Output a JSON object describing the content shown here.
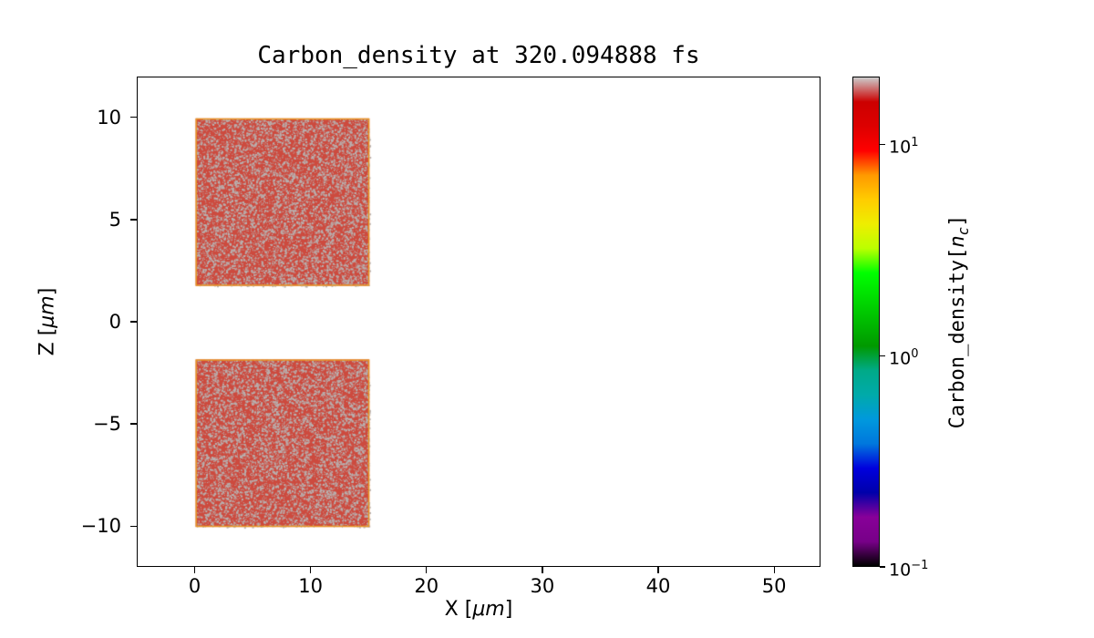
{
  "chart_data": {
    "type": "heatmap",
    "title": "Carbon_density at 320.094888 fs",
    "xlabel": {
      "pre": "X [",
      "math": "μm",
      "post": "]"
    },
    "ylabel": {
      "pre": "Z [",
      "math": "μm",
      "post": "]"
    },
    "x_range": [
      -5,
      54
    ],
    "z_range": [
      -12,
      12
    ],
    "x_ticks": [
      0,
      10,
      20,
      30,
      40,
      50
    ],
    "z_ticks": [
      10,
      5,
      0,
      -5,
      -10
    ],
    "grid": false,
    "blocks": [
      {
        "x0": 0,
        "x1": 15,
        "z0": 1.8,
        "z1": 10
      },
      {
        "x0": 0,
        "x1": 15,
        "z0": -10,
        "z1": -1.8
      }
    ],
    "block_fill": "#cd4a3e",
    "block_speckle": "#b8b1b0",
    "block_edge": "#e89820",
    "colorbar": {
      "label": {
        "pre": "Carbon_density[",
        "math": "n",
        "sub": "c",
        "post": "]"
      },
      "scale": "log",
      "min_exp": -1,
      "max_exp": 1.32,
      "ticks": [
        {
          "mantissa": "10",
          "exp_label": "1",
          "exp": 1
        },
        {
          "mantissa": "10",
          "exp_label": "0",
          "exp": 0
        },
        {
          "mantissa": "10",
          "exp_label": "−1",
          "exp": -1
        }
      ],
      "stops": [
        {
          "t": 0.0,
          "c": "#000000"
        },
        {
          "t": 0.05,
          "c": "#770088"
        },
        {
          "t": 0.1,
          "c": "#880099"
        },
        {
          "t": 0.15,
          "c": "#0000aa"
        },
        {
          "t": 0.2,
          "c": "#0000dd"
        },
        {
          "t": 0.25,
          "c": "#0077dd"
        },
        {
          "t": 0.3,
          "c": "#0099dd"
        },
        {
          "t": 0.35,
          "c": "#00aaaa"
        },
        {
          "t": 0.4,
          "c": "#00aa88"
        },
        {
          "t": 0.45,
          "c": "#009900"
        },
        {
          "t": 0.5,
          "c": "#00bb00"
        },
        {
          "t": 0.55,
          "c": "#00dd00"
        },
        {
          "t": 0.6,
          "c": "#00ff00"
        },
        {
          "t": 0.65,
          "c": "#bbff00"
        },
        {
          "t": 0.7,
          "c": "#eeee00"
        },
        {
          "t": 0.75,
          "c": "#ffcc00"
        },
        {
          "t": 0.8,
          "c": "#ff9900"
        },
        {
          "t": 0.85,
          "c": "#ff0000"
        },
        {
          "t": 0.9,
          "c": "#dd0000"
        },
        {
          "t": 0.95,
          "c": "#cc0000"
        },
        {
          "t": 1.0,
          "c": "#cccccc"
        }
      ]
    }
  }
}
